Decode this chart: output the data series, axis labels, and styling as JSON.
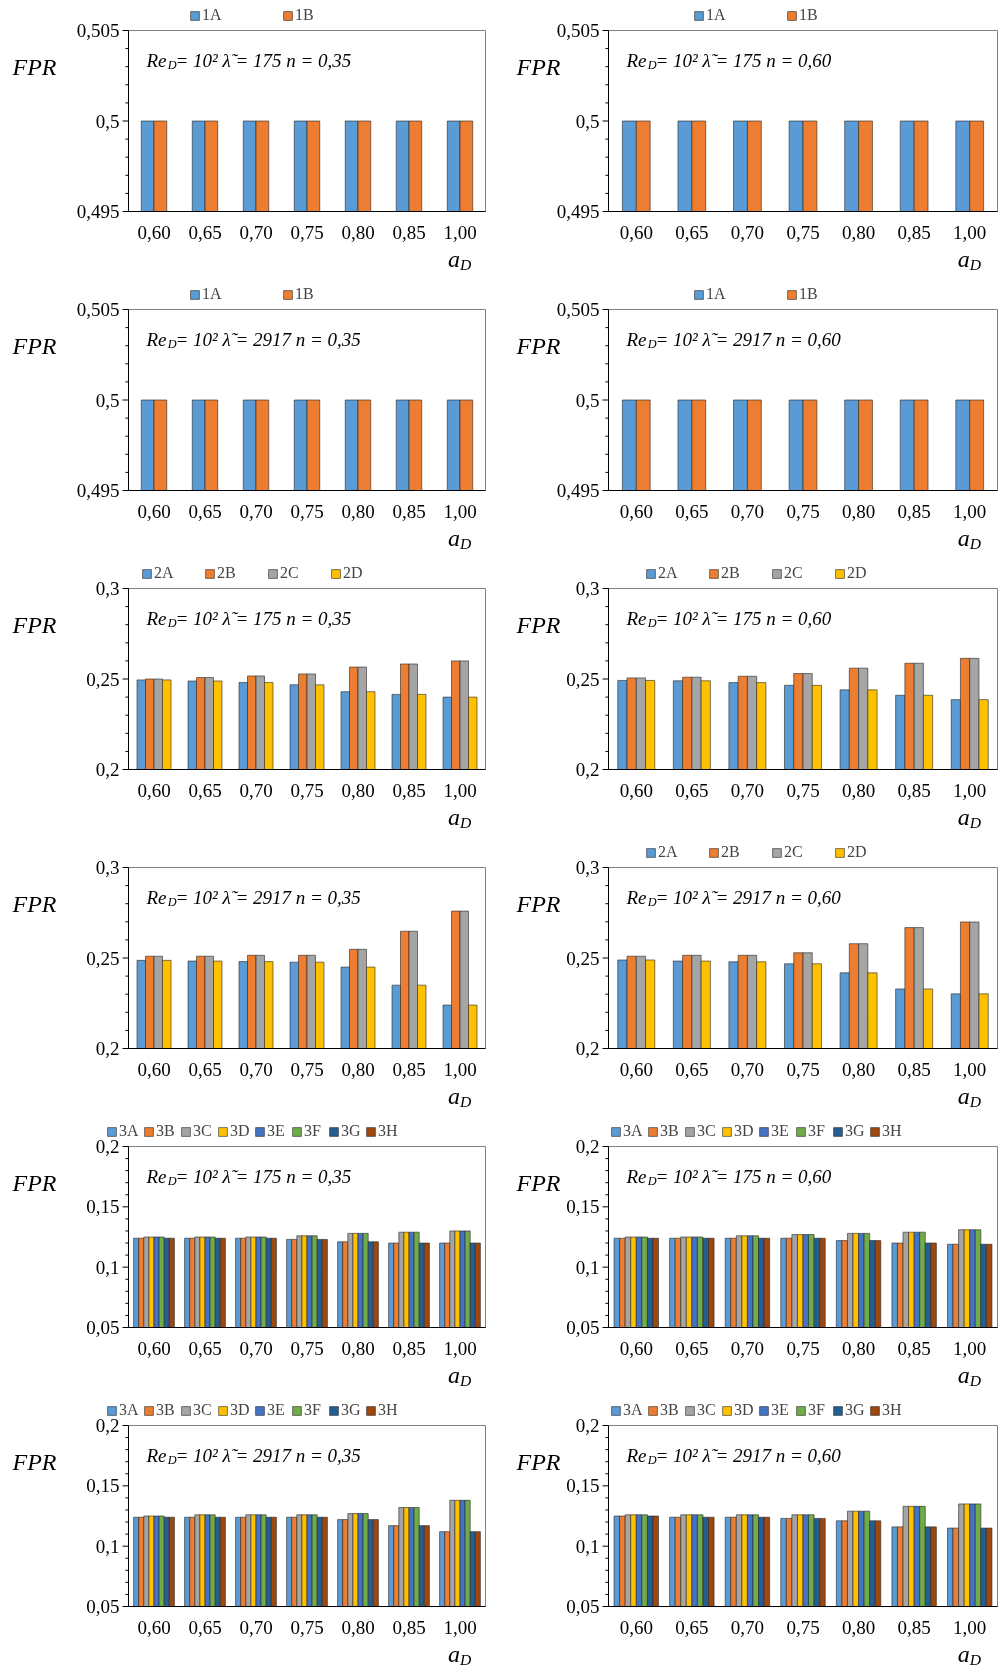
{
  "chart_data": [
    {
      "type": "bar",
      "categories": [
        "0,60",
        "0,65",
        "0,70",
        "0,75",
        "0,80",
        "0,85",
        "1,00"
      ],
      "ylabel": "FPR",
      "xlabel": "a$_{D}$",
      "annotations": [
        "Re$_{D}$= 10²   λ̃ = 175   n = 0,35"
      ],
      "ylim": [
        0.495,
        0.505
      ],
      "yticks": [
        {
          "value": 0.495,
          "label": "0,495"
        },
        {
          "value": 0.5,
          "label": "0,5"
        },
        {
          "value": 0.505,
          "label": "0,505"
        }
      ],
      "legend": "top",
      "series": [
        {
          "name": "1A",
          "color": "#5b9bd5",
          "values": [
            0.5,
            0.5,
            0.5,
            0.5,
            0.5,
            0.5,
            0.5
          ]
        },
        {
          "name": "1B",
          "color": "#ed7d31",
          "values": [
            0.5,
            0.5,
            0.5,
            0.5,
            0.5,
            0.5,
            0.5
          ]
        }
      ]
    },
    {
      "type": "bar",
      "categories": [
        "0,60",
        "0,65",
        "0,70",
        "0,75",
        "0,80",
        "0,85",
        "1,00"
      ],
      "ylabel": "FPR",
      "xlabel": "a$_{D}$",
      "annotations": [
        "Re$_{D}$= 10²   λ̃ = 175   n = 0,60"
      ],
      "ylim": [
        0.495,
        0.505
      ],
      "yticks": [
        {
          "value": 0.495,
          "label": "0,495"
        },
        {
          "value": 0.5,
          "label": "0,5"
        },
        {
          "value": 0.505,
          "label": "0,505"
        }
      ],
      "legend": "top",
      "series": [
        {
          "name": "1A",
          "color": "#5b9bd5",
          "values": [
            0.5,
            0.5,
            0.5,
            0.5,
            0.5,
            0.5,
            0.5
          ]
        },
        {
          "name": "1B",
          "color": "#ed7d31",
          "values": [
            0.5,
            0.5,
            0.5,
            0.5,
            0.5,
            0.5,
            0.5
          ]
        }
      ]
    },
    {
      "type": "bar",
      "categories": [
        "0,60",
        "0,65",
        "0,70",
        "0,75",
        "0,80",
        "0,85",
        "1,00"
      ],
      "ylabel": "FPR",
      "xlabel": "a$_{D}$",
      "annotations": [
        "Re$_{D}$= 10²   λ̃ = 2917   n = 0,35"
      ],
      "ylim": [
        0.495,
        0.505
      ],
      "yticks": [
        {
          "value": 0.495,
          "label": "0,495"
        },
        {
          "value": 0.5,
          "label": "0,5"
        },
        {
          "value": 0.505,
          "label": "0,505"
        }
      ],
      "legend": "top",
      "series": [
        {
          "name": "1A",
          "color": "#5b9bd5",
          "values": [
            0.5,
            0.5,
            0.5,
            0.5,
            0.5,
            0.5,
            0.5
          ]
        },
        {
          "name": "1B",
          "color": "#ed7d31",
          "values": [
            0.5,
            0.5,
            0.5,
            0.5,
            0.5,
            0.5,
            0.5
          ]
        }
      ]
    },
    {
      "type": "bar",
      "categories": [
        "0,60",
        "0,65",
        "0,70",
        "0,75",
        "0,80",
        "0,85",
        "1,00"
      ],
      "ylabel": "FPR",
      "xlabel": "a$_{D}$",
      "annotations": [
        "Re$_{D}$= 10²   λ̃ = 2917   n = 0,60"
      ],
      "ylim": [
        0.495,
        0.505
      ],
      "yticks": [
        {
          "value": 0.495,
          "label": "0,495"
        },
        {
          "value": 0.5,
          "label": "0,5"
        },
        {
          "value": 0.505,
          "label": "0,505"
        }
      ],
      "legend": "top",
      "series": [
        {
          "name": "1A",
          "color": "#5b9bd5",
          "values": [
            0.5,
            0.5,
            0.5,
            0.5,
            0.5,
            0.5,
            0.5
          ]
        },
        {
          "name": "1B",
          "color": "#ed7d31",
          "values": [
            0.5,
            0.5,
            0.5,
            0.5,
            0.5,
            0.5,
            0.5
          ]
        }
      ]
    },
    {
      "type": "bar",
      "categories": [
        "0,60",
        "0,65",
        "0,70",
        "0,75",
        "0,80",
        "0,85",
        "1,00"
      ],
      "ylabel": "FPR",
      "xlabel": "a$_{D}$",
      "annotations": [
        "Re$_{D}$= 10²   λ̃ = 175   n = 0,35"
      ],
      "ylim": [
        0.2,
        0.3
      ],
      "yticks": [
        {
          "value": 0.2,
          "label": "0,2"
        },
        {
          "value": 0.25,
          "label": "0,25"
        },
        {
          "value": 0.3,
          "label": "0,3"
        }
      ],
      "legend": "top",
      "series": [
        {
          "name": "2A",
          "color": "#5b9bd5",
          "values": [
            0.2495,
            0.2489,
            0.2481,
            0.2468,
            0.243,
            0.2415,
            0.24
          ]
        },
        {
          "name": "2B",
          "color": "#ed7d31",
          "values": [
            0.25,
            0.2508,
            0.2517,
            0.2528,
            0.2566,
            0.2583,
            0.26
          ]
        },
        {
          "name": "2C",
          "color": "#a5a5a5",
          "values": [
            0.25,
            0.2508,
            0.2517,
            0.2528,
            0.2566,
            0.2583,
            0.26
          ]
        },
        {
          "name": "2D",
          "color": "#ffc000",
          "values": [
            0.2495,
            0.2489,
            0.2481,
            0.2468,
            0.243,
            0.2415,
            0.24
          ]
        }
      ]
    },
    {
      "type": "bar",
      "categories": [
        "0,60",
        "0,65",
        "0,70",
        "0,75",
        "0,80",
        "0,85",
        "1,00"
      ],
      "ylabel": "FPR",
      "xlabel": "a$_{D}$",
      "annotations": [
        "Re$_{D}$= 10²   λ̃ = 175   n = 0,60"
      ],
      "ylim": [
        0.2,
        0.3
      ],
      "yticks": [
        {
          "value": 0.2,
          "label": "0,2"
        },
        {
          "value": 0.25,
          "label": "0,25"
        },
        {
          "value": 0.3,
          "label": "0,3"
        }
      ],
      "legend": "top",
      "series": [
        {
          "name": "2A",
          "color": "#5b9bd5",
          "values": [
            0.2492,
            0.249,
            0.248,
            0.2465,
            0.244,
            0.241,
            0.2386
          ]
        },
        {
          "name": "2B",
          "color": "#ed7d31",
          "values": [
            0.2506,
            0.251,
            0.2515,
            0.253,
            0.256,
            0.2587,
            0.2614
          ]
        },
        {
          "name": "2C",
          "color": "#a5a5a5",
          "values": [
            0.2506,
            0.251,
            0.2515,
            0.253,
            0.256,
            0.2587,
            0.2614
          ]
        },
        {
          "name": "2D",
          "color": "#ffc000",
          "values": [
            0.2492,
            0.249,
            0.248,
            0.2465,
            0.244,
            0.241,
            0.2386
          ]
        }
      ]
    },
    {
      "type": "bar",
      "categories": [
        "0,60",
        "0,65",
        "0,70",
        "0,75",
        "0,80",
        "0,85",
        "1,00"
      ],
      "ylabel": "FPR",
      "xlabel": "a$_{D}$",
      "annotations": [
        "Re$_{D}$= 10²   λ̃ = 2917   n = 0,35"
      ],
      "ylim": [
        0.2,
        0.3
      ],
      "yticks": [
        {
          "value": 0.2,
          "label": "0,2"
        },
        {
          "value": 0.25,
          "label": "0,25"
        },
        {
          "value": 0.3,
          "label": "0,3"
        }
      ],
      "series": [
        {
          "color": "#5b9bd5",
          "values": [
            0.2487,
            0.2483,
            0.248,
            0.2477,
            0.245,
            0.235,
            0.224
          ]
        },
        {
          "color": "#ed7d31",
          "values": [
            0.251,
            0.251,
            0.2515,
            0.2515,
            0.2548,
            0.2648,
            0.2759
          ]
        },
        {
          "color": "#a5a5a5",
          "values": [
            0.251,
            0.251,
            0.2515,
            0.2515,
            0.2548,
            0.2648,
            0.2759
          ]
        },
        {
          "color": "#ffc000",
          "values": [
            0.2487,
            0.2483,
            0.248,
            0.2477,
            0.245,
            0.235,
            0.224
          ]
        }
      ]
    },
    {
      "type": "bar",
      "categories": [
        "0,60",
        "0,65",
        "0,70",
        "0,75",
        "0,80",
        "0,85",
        "1,00"
      ],
      "ylabel": "FPR",
      "xlabel": "a$_{D}$",
      "annotations": [
        "Re$_{D}$= 10²   λ̃ = 2917   n = 0,60"
      ],
      "ylim": [
        0.2,
        0.3
      ],
      "yticks": [
        {
          "value": 0.2,
          "label": "0,2"
        },
        {
          "value": 0.25,
          "label": "0,25"
        },
        {
          "value": 0.3,
          "label": "0,3"
        }
      ],
      "legend": "top",
      "series": [
        {
          "name": "2A",
          "color": "#5b9bd5",
          "values": [
            0.2489,
            0.2483,
            0.2479,
            0.2468,
            0.2418,
            0.2329,
            0.2302
          ]
        },
        {
          "name": "2B",
          "color": "#ed7d31",
          "values": [
            0.251,
            0.2515,
            0.2515,
            0.2529,
            0.2579,
            0.2668,
            0.2699
          ]
        },
        {
          "name": "2C",
          "color": "#a5a5a5",
          "values": [
            0.251,
            0.2515,
            0.2515,
            0.2529,
            0.2579,
            0.2668,
            0.2699
          ]
        },
        {
          "name": "2D",
          "color": "#ffc000",
          "values": [
            0.2489,
            0.2483,
            0.2479,
            0.2468,
            0.2418,
            0.2329,
            0.2302
          ]
        }
      ]
    },
    {
      "type": "bar",
      "categories": [
        "0,60",
        "0,65",
        "0,70",
        "0,75",
        "0,80",
        "0,85",
        "1,00"
      ],
      "ylabel": "FPR",
      "xlabel": "a$_{D}$",
      "annotations": [
        "Re$_{D}$= 10²   λ̃ = 175   n = 0,35"
      ],
      "ylim": [
        0.05,
        0.2
      ],
      "yticks": [
        {
          "value": 0.05,
          "label": "0,05"
        },
        {
          "value": 0.1,
          "label": "0,1"
        },
        {
          "value": 0.15,
          "label": "0,15"
        },
        {
          "value": 0.2,
          "label": "0,2"
        }
      ],
      "legend": "top",
      "series": [
        {
          "name": "3A",
          "color": "#5b9bd5",
          "values": [
            0.124,
            0.124,
            0.124,
            0.123,
            0.121,
            0.12,
            0.12
          ]
        },
        {
          "name": "3B",
          "color": "#ed7d31",
          "values": [
            0.124,
            0.124,
            0.124,
            0.123,
            0.121,
            0.12,
            0.12
          ]
        },
        {
          "name": "3C",
          "color": "#a5a5a5",
          "values": [
            0.125,
            0.125,
            0.125,
            0.126,
            0.128,
            0.129,
            0.13
          ]
        },
        {
          "name": "3D",
          "color": "#ffc000",
          "values": [
            0.125,
            0.125,
            0.125,
            0.126,
            0.128,
            0.129,
            0.13
          ]
        },
        {
          "name": "3E",
          "color": "#4472c4",
          "values": [
            0.125,
            0.125,
            0.125,
            0.126,
            0.128,
            0.129,
            0.13
          ]
        },
        {
          "name": "3F",
          "color": "#70ad47",
          "values": [
            0.125,
            0.125,
            0.125,
            0.126,
            0.128,
            0.129,
            0.13
          ]
        },
        {
          "name": "3G",
          "color": "#255e91",
          "values": [
            0.124,
            0.124,
            0.124,
            0.123,
            0.121,
            0.12,
            0.12
          ]
        },
        {
          "name": "3H",
          "color": "#9e480e",
          "values": [
            0.124,
            0.124,
            0.124,
            0.123,
            0.121,
            0.12,
            0.12
          ]
        }
      ]
    },
    {
      "type": "bar",
      "categories": [
        "0,60",
        "0,65",
        "0,70",
        "0,75",
        "0,80",
        "0,85",
        "1,00"
      ],
      "ylabel": "FPR",
      "xlabel": "a$_{D}$",
      "annotations": [
        "Re$_{D}$= 10²   λ̃ = 175   n = 0,60"
      ],
      "ylim": [
        0.05,
        0.2
      ],
      "yticks": [
        {
          "value": 0.05,
          "label": "0,05"
        },
        {
          "value": 0.1,
          "label": "0,1"
        },
        {
          "value": 0.15,
          "label": "0,15"
        },
        {
          "value": 0.2,
          "label": "0,2"
        }
      ],
      "legend": "top",
      "series": [
        {
          "name": "3A",
          "color": "#5b9bd5",
          "values": [
            0.124,
            0.124,
            0.124,
            0.124,
            0.122,
            0.12,
            0.119
          ]
        },
        {
          "name": "3B",
          "color": "#ed7d31",
          "values": [
            0.124,
            0.124,
            0.124,
            0.124,
            0.122,
            0.12,
            0.119
          ]
        },
        {
          "name": "3C",
          "color": "#a5a5a5",
          "values": [
            0.125,
            0.125,
            0.126,
            0.127,
            0.128,
            0.129,
            0.131
          ]
        },
        {
          "name": "3D",
          "color": "#ffc000",
          "values": [
            0.125,
            0.125,
            0.126,
            0.127,
            0.128,
            0.129,
            0.131
          ]
        },
        {
          "name": "3E",
          "color": "#4472c4",
          "values": [
            0.125,
            0.125,
            0.126,
            0.127,
            0.128,
            0.129,
            0.131
          ]
        },
        {
          "name": "3F",
          "color": "#70ad47",
          "values": [
            0.125,
            0.125,
            0.126,
            0.127,
            0.128,
            0.129,
            0.131
          ]
        },
        {
          "name": "3G",
          "color": "#255e91",
          "values": [
            0.124,
            0.124,
            0.124,
            0.124,
            0.122,
            0.12,
            0.119
          ]
        },
        {
          "name": "3H",
          "color": "#9e480e",
          "values": [
            0.124,
            0.124,
            0.124,
            0.124,
            0.122,
            0.12,
            0.119
          ]
        }
      ]
    },
    {
      "type": "bar",
      "categories": [
        "0,60",
        "0,65",
        "0,70",
        "0,75",
        "0,80",
        "0,85",
        "1,00"
      ],
      "ylabel": "FPR",
      "xlabel": "a$_{D}$",
      "annotations": [
        "Re$_{D}$= 10²   λ̃ = 2917   n = 0,35"
      ],
      "ylim": [
        0.05,
        0.2
      ],
      "yticks": [
        {
          "value": 0.05,
          "label": "0,05"
        },
        {
          "value": 0.1,
          "label": "0,1"
        },
        {
          "value": 0.15,
          "label": "0,15"
        },
        {
          "value": 0.2,
          "label": "0,2"
        }
      ],
      "legend": "top",
      "series": [
        {
          "name": "3A",
          "color": "#5b9bd5",
          "values": [
            0.124,
            0.124,
            0.124,
            0.124,
            0.122,
            0.117,
            0.112
          ]
        },
        {
          "name": "3B",
          "color": "#ed7d31",
          "values": [
            0.124,
            0.124,
            0.124,
            0.124,
            0.122,
            0.117,
            0.112
          ]
        },
        {
          "name": "3C",
          "color": "#a5a5a5",
          "values": [
            0.125,
            0.126,
            0.126,
            0.126,
            0.127,
            0.132,
            0.138
          ]
        },
        {
          "name": "3D",
          "color": "#ffc000",
          "values": [
            0.125,
            0.126,
            0.126,
            0.126,
            0.127,
            0.132,
            0.138
          ]
        },
        {
          "name": "3E",
          "color": "#4472c4",
          "values": [
            0.125,
            0.126,
            0.126,
            0.126,
            0.127,
            0.132,
            0.138
          ]
        },
        {
          "name": "3F",
          "color": "#70ad47",
          "values": [
            0.125,
            0.126,
            0.126,
            0.126,
            0.127,
            0.132,
            0.138
          ]
        },
        {
          "name": "3G",
          "color": "#255e91",
          "values": [
            0.124,
            0.124,
            0.124,
            0.124,
            0.122,
            0.117,
            0.112
          ]
        },
        {
          "name": "3H",
          "color": "#9e480e",
          "values": [
            0.124,
            0.124,
            0.124,
            0.124,
            0.122,
            0.117,
            0.112
          ]
        }
      ]
    },
    {
      "type": "bar",
      "categories": [
        "0,60",
        "0,65",
        "0,70",
        "0,75",
        "0,80",
        "0,85",
        "1,00"
      ],
      "ylabel": "FPR",
      "xlabel": "a$_{D}$",
      "annotations": [
        "Re$_{D}$= 10²   λ̃ = 2917   n = 0,60"
      ],
      "ylim": [
        0.05,
        0.2
      ],
      "yticks": [
        {
          "value": 0.05,
          "label": "0,05"
        },
        {
          "value": 0.1,
          "label": "0,1"
        },
        {
          "value": 0.15,
          "label": "0,15"
        },
        {
          "value": 0.2,
          "label": "0,2"
        }
      ],
      "legend": "top",
      "series": [
        {
          "name": "3A",
          "color": "#5b9bd5",
          "values": [
            0.125,
            0.124,
            0.124,
            0.123,
            0.121,
            0.116,
            0.115
          ]
        },
        {
          "name": "3B",
          "color": "#ed7d31",
          "values": [
            0.125,
            0.124,
            0.124,
            0.123,
            0.121,
            0.116,
            0.115
          ]
        },
        {
          "name": "3C",
          "color": "#a5a5a5",
          "values": [
            0.126,
            0.126,
            0.126,
            0.126,
            0.129,
            0.133,
            0.135
          ]
        },
        {
          "name": "3D",
          "color": "#ffc000",
          "values": [
            0.126,
            0.126,
            0.126,
            0.126,
            0.129,
            0.133,
            0.135
          ]
        },
        {
          "name": "3E",
          "color": "#4472c4",
          "values": [
            0.126,
            0.126,
            0.126,
            0.126,
            0.129,
            0.133,
            0.135
          ]
        },
        {
          "name": "3F",
          "color": "#70ad47",
          "values": [
            0.126,
            0.126,
            0.126,
            0.126,
            0.129,
            0.133,
            0.135
          ]
        },
        {
          "name": "3G",
          "color": "#255e91",
          "values": [
            0.125,
            0.124,
            0.124,
            0.123,
            0.121,
            0.116,
            0.115
          ]
        },
        {
          "name": "3H",
          "color": "#9e480e",
          "values": [
            0.125,
            0.124,
            0.124,
            0.123,
            0.121,
            0.116,
            0.115
          ]
        }
      ]
    }
  ]
}
